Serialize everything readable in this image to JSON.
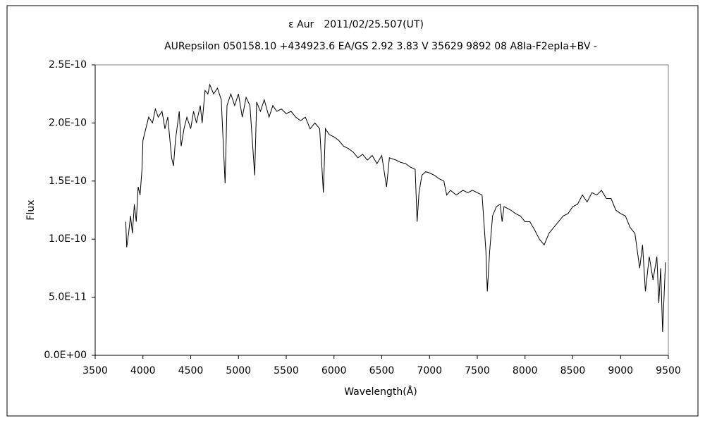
{
  "chart_data": {
    "type": "line",
    "title": "ε Aur　2011/02/25.507(UT)",
    "subtitle": "AURepsilon 050158.10 +434923.6 EA/GS 2.92 3.83 V 35629 9892 08 A8Ia-F2epIa+BV -",
    "x_label": "Wavelength(Å)",
    "y_label": "Flux",
    "color": "#000000",
    "xlim": [
      3500,
      9500
    ],
    "xticks": [
      3500,
      4000,
      4500,
      5000,
      5500,
      6000,
      6500,
      7000,
      7500,
      8000,
      8500,
      9000,
      9500
    ],
    "ylim": [
      0,
      2.5e-10
    ],
    "yticks": [
      {
        "value": 0,
        "label": "0.0E+00"
      },
      {
        "value": 5e-11,
        "label": "5.0E-11"
      },
      {
        "value": 1e-10,
        "label": "1.0E-10"
      },
      {
        "value": 1.5e-10,
        "label": "1.5E-10"
      },
      {
        "value": 2e-10,
        "label": "2.0E-10"
      },
      {
        "value": 2.5e-10,
        "label": "2.5E-10"
      }
    ],
    "grid": false,
    "x": [
      3820,
      3830,
      3850,
      3870,
      3890,
      3910,
      3930,
      3950,
      3970,
      3990,
      4000,
      4030,
      4060,
      4100,
      4130,
      4160,
      4200,
      4230,
      4260,
      4300,
      4320,
      4340,
      4380,
      4400,
      4430,
      4460,
      4500,
      4530,
      4560,
      4600,
      4620,
      4650,
      4680,
      4700,
      4740,
      4780,
      4820,
      4860,
      4880,
      4920,
      4960,
      5000,
      5040,
      5080,
      5120,
      5170,
      5190,
      5230,
      5270,
      5320,
      5360,
      5400,
      5450,
      5500,
      5550,
      5600,
      5650,
      5700,
      5750,
      5800,
      5850,
      5889,
      5910,
      5950,
      6000,
      6050,
      6100,
      6150,
      6200,
      6250,
      6300,
      6350,
      6400,
      6450,
      6500,
      6550,
      6580,
      6650,
      6700,
      6750,
      6800,
      6850,
      6870,
      6890,
      6920,
      6960,
      7000,
      7050,
      7100,
      7150,
      7180,
      7220,
      7280,
      7350,
      7400,
      7450,
      7500,
      7550,
      7590,
      7605,
      7630,
      7660,
      7700,
      7740,
      7760,
      7780,
      7850,
      7900,
      7950,
      8000,
      8050,
      8100,
      8150,
      8200,
      8250,
      8300,
      8350,
      8400,
      8450,
      8500,
      8550,
      8600,
      8650,
      8700,
      8750,
      8800,
      8850,
      8900,
      8950,
      9000,
      9050,
      9100,
      9150,
      9200,
      9230,
      9260,
      9300,
      9340,
      9380,
      9400,
      9420,
      9440,
      9460,
      9470
    ],
    "values": [
      1.15e-10,
      9.3e-11,
      1.05e-10,
      1.2e-10,
      1.05e-10,
      1.3e-10,
      1.15e-10,
      1.45e-10,
      1.38e-10,
      1.6e-10,
      1.85e-10,
      1.95e-10,
      2.05e-10,
      2e-10,
      2.12e-10,
      2.05e-10,
      2.1e-10,
      1.95e-10,
      2.05e-10,
      1.7e-10,
      1.63e-10,
      1.85e-10,
      2.1e-10,
      1.8e-10,
      1.95e-10,
      2.05e-10,
      1.95e-10,
      2.1e-10,
      2e-10,
      2.15e-10,
      2e-10,
      2.28e-10,
      2.25e-10,
      2.33e-10,
      2.25e-10,
      2.3e-10,
      2.2e-10,
      1.48e-10,
      2.15e-10,
      2.25e-10,
      2.15e-10,
      2.25e-10,
      2.05e-10,
      2.22e-10,
      2.15e-10,
      1.55e-10,
      2.18e-10,
      2.1e-10,
      2.2e-10,
      2.05e-10,
      2.15e-10,
      2.1e-10,
      2.12e-10,
      2.08e-10,
      2.1e-10,
      2.05e-10,
      2.02e-10,
      2.05e-10,
      1.95e-10,
      2e-10,
      1.95e-10,
      1.4e-10,
      1.95e-10,
      1.9e-10,
      1.88e-10,
      1.85e-10,
      1.8e-10,
      1.78e-10,
      1.75e-10,
      1.7e-10,
      1.73e-10,
      1.68e-10,
      1.72e-10,
      1.65e-10,
      1.72e-10,
      1.45e-10,
      1.7e-10,
      1.68e-10,
      1.66e-10,
      1.65e-10,
      1.62e-10,
      1.6e-10,
      1.15e-10,
      1.4e-10,
      1.55e-10,
      1.58e-10,
      1.57e-10,
      1.55e-10,
      1.52e-10,
      1.5e-10,
      1.38e-10,
      1.42e-10,
      1.38e-10,
      1.42e-10,
      1.4e-10,
      1.42e-10,
      1.4e-10,
      1.38e-10,
      9e-11,
      5.5e-11,
      9e-11,
      1.2e-10,
      1.28e-10,
      1.3e-10,
      1.15e-10,
      1.28e-10,
      1.25e-10,
      1.22e-10,
      1.2e-10,
      1.15e-10,
      1.15e-10,
      1.08e-10,
      1e-10,
      9.5e-11,
      1.05e-10,
      1.1e-10,
      1.15e-10,
      1.2e-10,
      1.22e-10,
      1.28e-10,
      1.3e-10,
      1.38e-10,
      1.32e-10,
      1.4e-10,
      1.38e-10,
      1.42e-10,
      1.35e-10,
      1.35e-10,
      1.25e-10,
      1.22e-10,
      1.2e-10,
      1.1e-10,
      1.05e-10,
      7.5e-11,
      9.5e-11,
      5.5e-11,
      8.5e-11,
      6.5e-11,
      8.5e-11,
      4.5e-11,
      7.5e-11,
      2e-11,
      6e-11,
      8e-11
    ]
  }
}
